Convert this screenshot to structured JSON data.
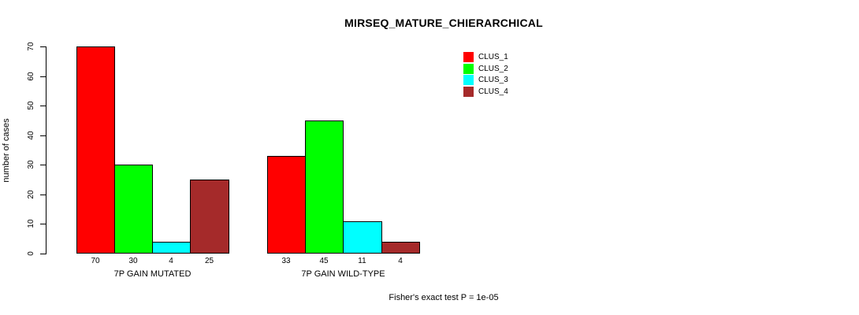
{
  "chart_data": {
    "type": "bar",
    "title": "MIRSEQ_MATURE_CHIERARCHICAL",
    "xlabel": "",
    "ylabel": "number of cases",
    "ylim": [
      0,
      70
    ],
    "yticks": [
      0,
      10,
      20,
      30,
      40,
      50,
      60,
      70
    ],
    "categories": [
      "7P GAIN MUTATED",
      "7P GAIN WILD-TYPE"
    ],
    "series": [
      {
        "name": "CLUS_1",
        "color": "#FF0000",
        "values": [
          70,
          33
        ]
      },
      {
        "name": "CLUS_2",
        "color": "#00FF00",
        "values": [
          30,
          45
        ]
      },
      {
        "name": "CLUS_3",
        "color": "#00FFFF",
        "values": [
          4,
          11
        ]
      },
      {
        "name": "CLUS_4",
        "color": "#A52A2A",
        "values": [
          25,
          4
        ]
      }
    ],
    "bar_value_labels": true,
    "legend_position": "top-right",
    "grid": false,
    "footnote": "Fisher's exact test P = 1e-05"
  }
}
